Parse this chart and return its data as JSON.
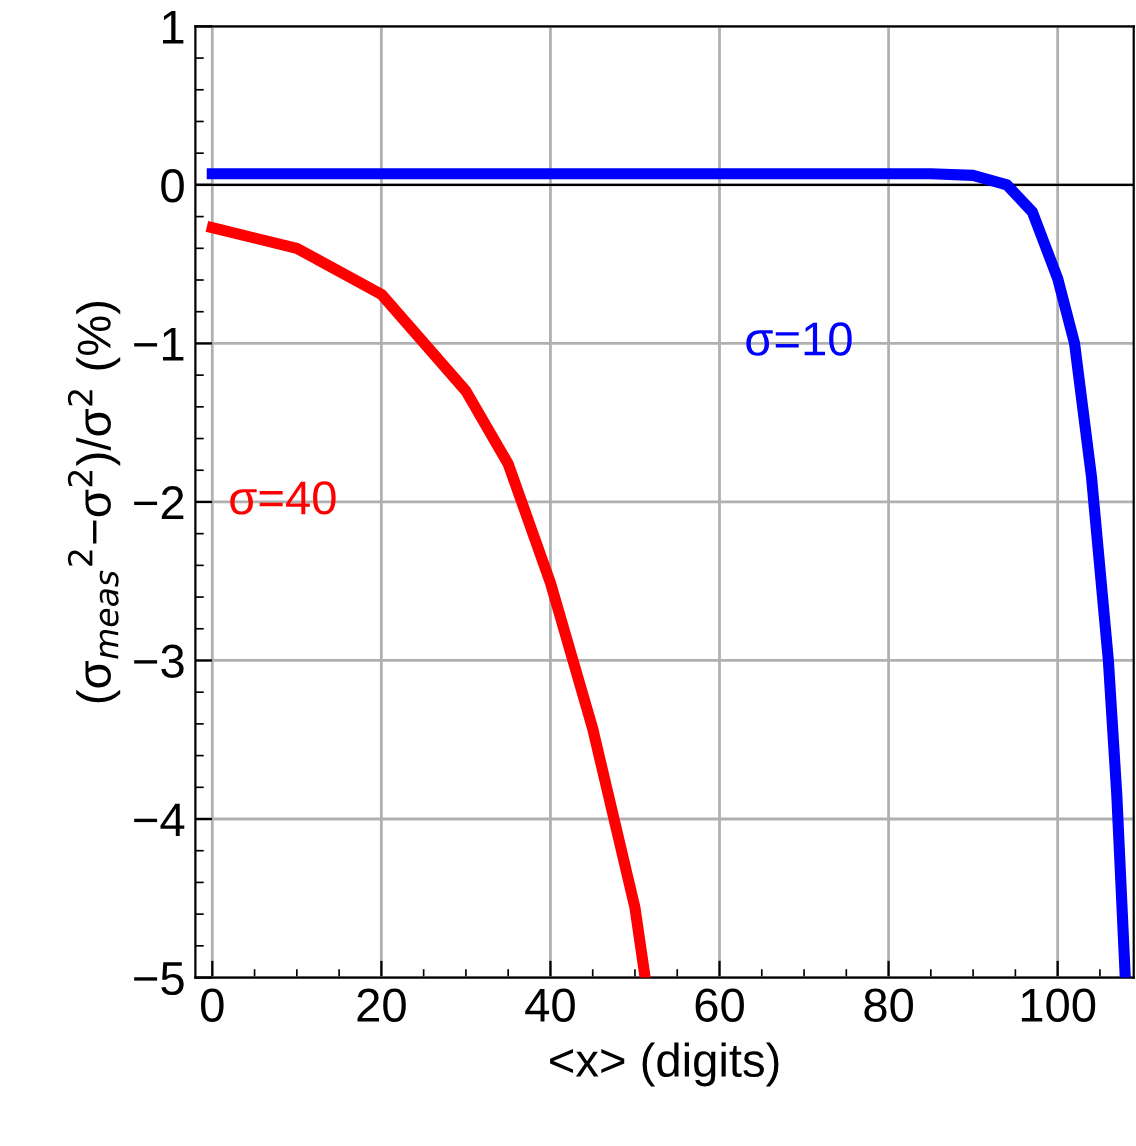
{
  "chart_data": {
    "type": "line",
    "xlabel": "<x> (digits)",
    "ylabel": "(σ$_{meas}$$^{2}$−σ$^{2}$)/σ$^{2}$ (%)",
    "xlim": [
      -2,
      109
    ],
    "ylim": [
      -5,
      1
    ],
    "xticks": [
      0,
      20,
      40,
      60,
      80,
      100
    ],
    "yticks": [
      {
        "value": -5,
        "label": "−5"
      },
      {
        "value": -4,
        "label": "−4"
      },
      {
        "value": -3,
        "label": "−3"
      },
      {
        "value": -2,
        "label": "−2"
      },
      {
        "value": -1,
        "label": "−1"
      },
      0,
      1
    ],
    "grid": true,
    "legend": false,
    "line_style": "solid",
    "marker": "none",
    "ref_lines": [
      {
        "axis": "y",
        "value": 0,
        "color": "#000000"
      }
    ],
    "series": [
      {
        "name": "σ=40",
        "color": "#ff0000",
        "x": [
          0,
          10,
          20,
          30,
          35,
          40,
          45,
          50,
          51.2
        ],
        "values": [
          -0.27,
          -0.4,
          -0.69,
          -1.3,
          -1.76,
          -2.51,
          -3.43,
          -4.56,
          -5
        ]
      },
      {
        "name": "σ=10",
        "color": "#0000ff",
        "x": [
          0,
          85,
          90,
          94,
          97,
          100,
          102,
          104,
          106,
          107,
          108
        ],
        "values": [
          0.07,
          0.07,
          0.06,
          0,
          -0.17,
          -0.59,
          -1.0,
          -1.84,
          -3.0,
          -3.85,
          -5
        ]
      }
    ]
  }
}
